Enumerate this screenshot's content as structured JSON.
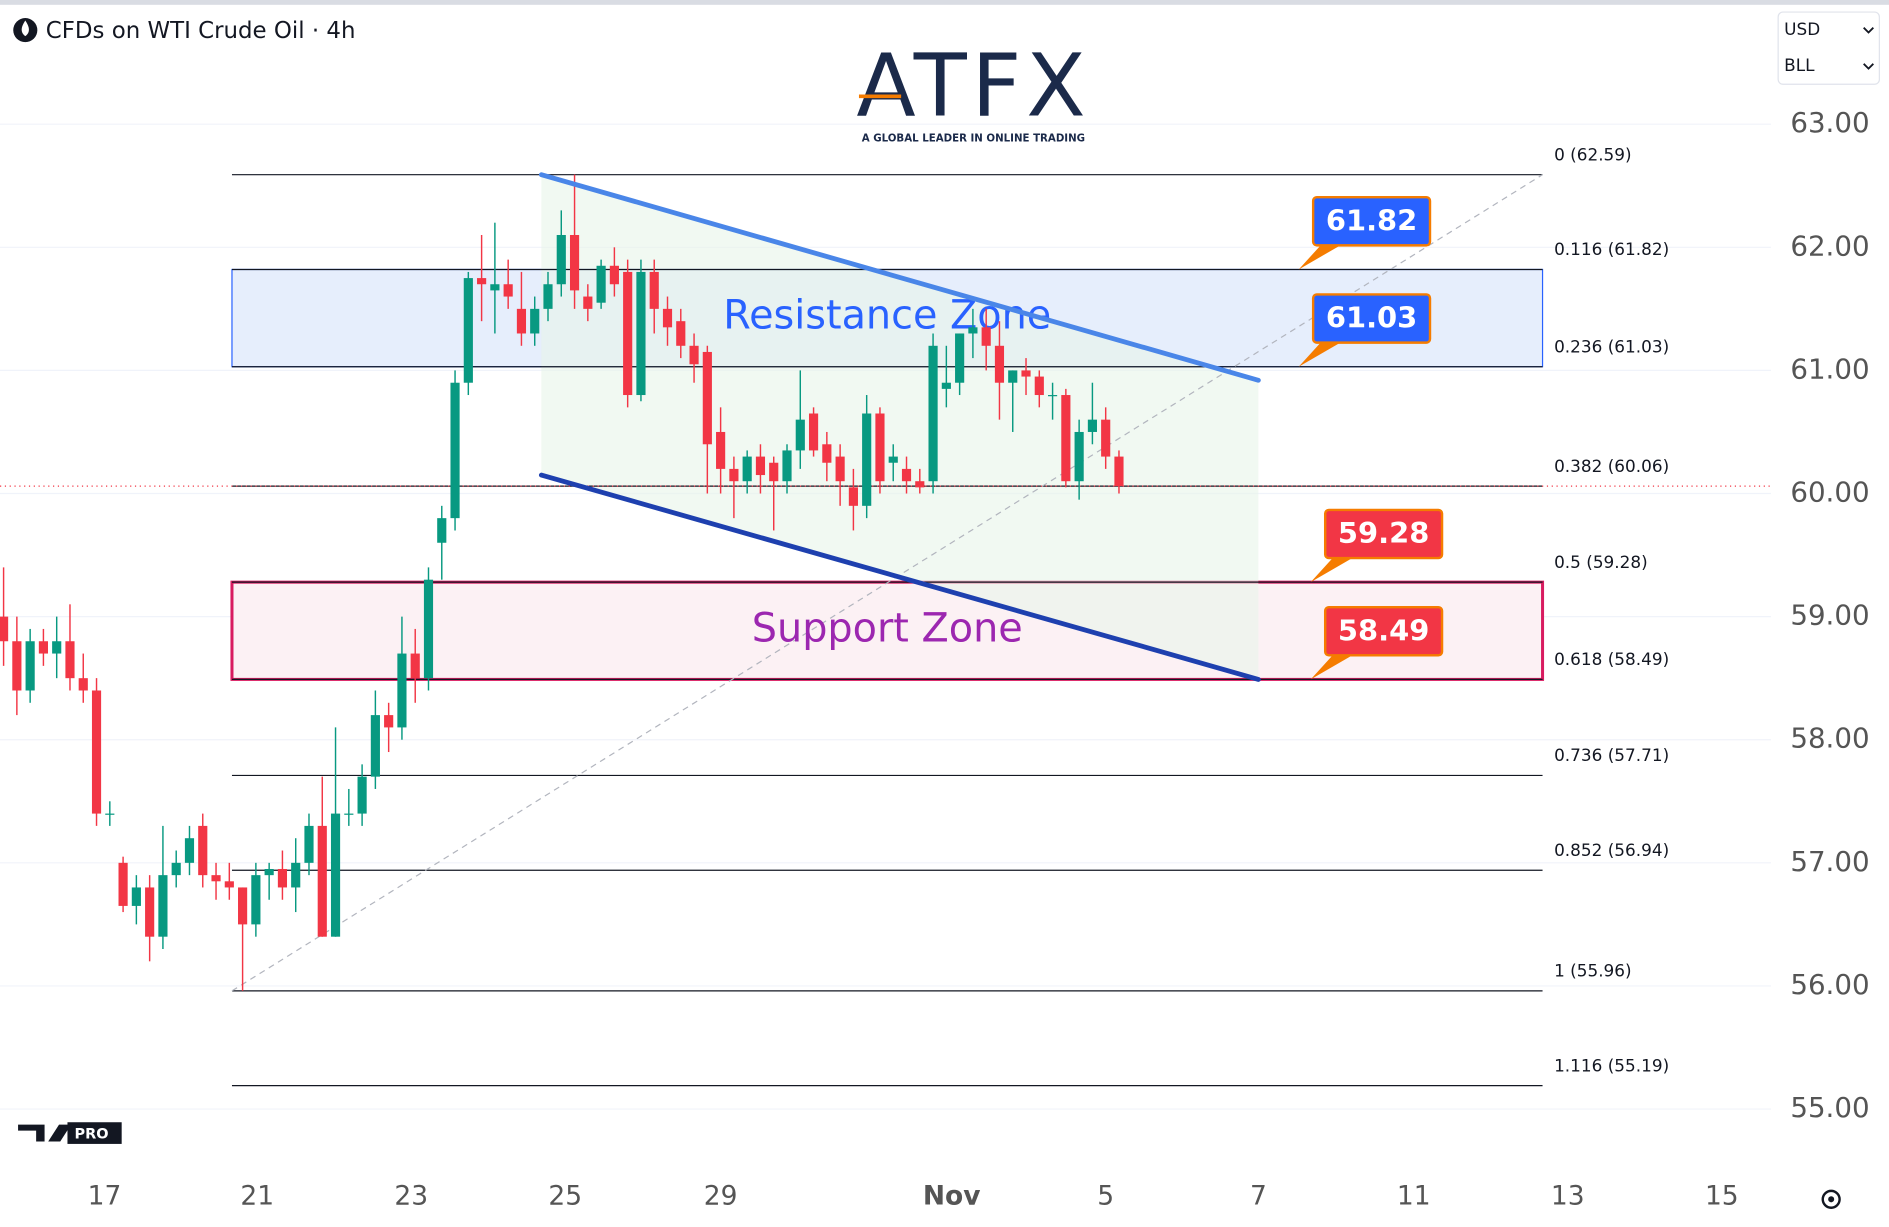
{
  "header": {
    "title": "CFDs on WTI Crude Oil · 4h",
    "logo": "ATFX",
    "tagline": "A GLOBAL LEADER IN ONLINE TRADING",
    "currency": "USD",
    "unit": "BLL",
    "badge": "PRO"
  },
  "chart_data": {
    "type": "candlestick",
    "x": [
      0,
      1,
      2,
      3,
      4,
      5,
      6,
      7,
      8,
      9,
      10,
      11,
      12,
      13,
      14,
      15,
      16,
      17,
      18,
      19,
      20,
      21,
      22,
      23,
      24,
      25,
      26,
      27,
      28,
      29,
      30,
      31,
      32,
      33,
      34,
      35,
      36,
      37,
      38,
      39,
      40,
      41,
      42,
      43,
      44,
      45,
      46,
      47,
      48,
      49,
      50,
      51,
      52,
      53,
      54,
      55,
      56,
      57,
      58,
      59,
      60,
      61,
      62,
      63,
      64,
      65,
      66,
      67,
      68,
      69,
      70,
      71,
      72,
      73,
      74,
      75,
      76,
      77,
      78,
      79,
      80,
      81,
      82,
      83,
      84
    ],
    "open": [
      59.0,
      58.8,
      58.4,
      58.8,
      58.7,
      58.8,
      58.5,
      58.4,
      57.4,
      57.0,
      56.65,
      56.8,
      56.4,
      56.9,
      57.0,
      57.3,
      56.9,
      56.85,
      56.8,
      56.5,
      56.9,
      56.95,
      56.8,
      57.0,
      57.3,
      56.4,
      57.4,
      57.4,
      57.7,
      58.2,
      58.1,
      58.7,
      58.5,
      59.6,
      59.8,
      60.9,
      61.75,
      61.65,
      61.7,
      61.5,
      61.3,
      61.5,
      61.7,
      62.1,
      61.6,
      61.55,
      61.85,
      61.8,
      60.8,
      61.8,
      61.5,
      61.4,
      61.2,
      61.15,
      60.5,
      60.2,
      60.1,
      60.3,
      60.25,
      60.1,
      60.35,
      60.65,
      60.4,
      60.3,
      60.05,
      59.9,
      60.65,
      60.25,
      60.2,
      60.1,
      60.1,
      60.85,
      60.9,
      61.3,
      61.35,
      61.2,
      60.9,
      61.0,
      60.95,
      60.8,
      60.8,
      60.1,
      60.5,
      60.6,
      60.3
    ],
    "high": [
      59.4,
      59.0,
      58.9,
      58.9,
      59.0,
      59.1,
      58.7,
      58.5,
      57.5,
      57.05,
      56.9,
      56.9,
      57.3,
      57.1,
      57.3,
      57.4,
      57.0,
      57.0,
      56.8,
      57.0,
      57.0,
      57.1,
      57.2,
      57.4,
      57.7,
      58.1,
      57.6,
      57.8,
      58.4,
      58.3,
      59.0,
      58.9,
      59.4,
      59.9,
      61.0,
      61.8,
      62.1,
      62.2,
      61.9,
      61.8,
      61.6,
      61.8,
      62.3,
      62.59,
      61.7,
      61.9,
      62.0,
      61.9,
      61.9,
      61.9,
      61.6,
      61.5,
      61.3,
      61.2,
      60.7,
      60.3,
      60.35,
      60.4,
      60.3,
      60.4,
      61.0,
      60.7,
      60.5,
      60.4,
      60.2,
      60.8,
      60.7,
      60.4,
      60.3,
      60.2,
      61.3,
      61.2,
      61.3,
      61.5,
      61.5,
      61.4,
      61.0,
      61.1,
      61.0,
      60.9,
      60.85,
      60.6,
      60.9,
      60.7,
      60.35
    ],
    "low": [
      58.6,
      58.2,
      58.3,
      58.6,
      58.5,
      58.4,
      58.3,
      57.3,
      57.3,
      56.6,
      56.5,
      56.2,
      56.3,
      56.8,
      56.9,
      56.8,
      56.7,
      56.7,
      55.96,
      56.4,
      56.7,
      56.7,
      56.6,
      56.9,
      56.4,
      56.4,
      57.3,
      57.3,
      57.6,
      57.9,
      58.0,
      58.3,
      58.4,
      59.3,
      59.7,
      60.8,
      61.4,
      61.3,
      61.5,
      61.2,
      61.2,
      61.4,
      61.6,
      61.5,
      61.4,
      61.5,
      61.6,
      60.7,
      60.75,
      61.3,
      61.2,
      61.1,
      60.9,
      60.0,
      60.0,
      59.8,
      60.0,
      60.0,
      59.7,
      60.0,
      60.2,
      60.3,
      60.1,
      59.9,
      59.7,
      59.8,
      60.0,
      60.1,
      60.0,
      60.0,
      60.0,
      60.7,
      60.8,
      61.1,
      61.0,
      60.6,
      60.5,
      60.8,
      60.7,
      60.6,
      60.05,
      59.95,
      60.4,
      60.2,
      60.0
    ],
    "close": [
      58.8,
      58.4,
      58.8,
      58.7,
      58.8,
      58.5,
      58.4,
      57.4,
      57.4,
      56.65,
      56.8,
      56.4,
      56.9,
      57.0,
      57.2,
      56.9,
      56.85,
      56.8,
      56.5,
      56.9,
      56.95,
      56.8,
      57.0,
      57.3,
      56.4,
      57.4,
      57.4,
      57.7,
      58.2,
      58.1,
      58.7,
      58.5,
      59.3,
      59.8,
      60.9,
      61.75,
      61.7,
      61.7,
      61.6,
      61.3,
      61.5,
      61.7,
      62.1,
      61.65,
      61.5,
      61.85,
      61.7,
      60.8,
      61.8,
      61.5,
      61.35,
      61.2,
      61.05,
      60.4,
      60.2,
      60.1,
      60.3,
      60.15,
      60.1,
      60.35,
      60.6,
      60.35,
      60.25,
      60.1,
      59.9,
      60.65,
      60.1,
      60.3,
      60.1,
      60.05,
      61.2,
      60.9,
      61.3,
      61.35,
      61.2,
      60.9,
      61.0,
      60.95,
      60.8,
      60.8,
      60.1,
      60.5,
      60.6,
      60.3,
      60.06
    ],
    "up_color": "#089981",
    "down_color": "#f23645",
    "xlim": [
      -0.27,
      133.1
    ],
    "ylim": [
      54.57,
      63.96
    ],
    "xticks": [
      {
        "value": 7.6,
        "label": "17"
      },
      {
        "value": 19.1,
        "label": "21"
      },
      {
        "value": 30.7,
        "label": "23"
      },
      {
        "value": 42.3,
        "label": "25"
      },
      {
        "value": 54.0,
        "label": "29"
      },
      {
        "value": 71.4,
        "label": "Nov"
      },
      {
        "value": 83.0,
        "label": "5"
      },
      {
        "value": 94.5,
        "label": "7"
      },
      {
        "value": 106.2,
        "label": "11"
      },
      {
        "value": 117.8,
        "label": "13"
      },
      {
        "value": 129.4,
        "label": "15"
      }
    ],
    "yticks": [
      {
        "value": 55,
        "label": "55.00"
      },
      {
        "value": 56,
        "label": "56.00"
      },
      {
        "value": 57,
        "label": "57.00"
      },
      {
        "value": 58,
        "label": "58.00"
      },
      {
        "value": 59,
        "label": "59.00"
      },
      {
        "value": 60,
        "label": "60.00"
      },
      {
        "value": 61,
        "label": "61.00"
      },
      {
        "value": 62,
        "label": "62.00"
      },
      {
        "value": 63,
        "label": "63.00"
      }
    ],
    "grid": true,
    "fib_x": [
      17.2,
      115.9
    ],
    "fib_levels": [
      {
        "value": 62.59,
        "label": "0 (62.59)"
      },
      {
        "value": 61.82,
        "label": "0.116 (61.82)"
      },
      {
        "value": 61.03,
        "label": "0.236 (61.03)"
      },
      {
        "value": 60.06,
        "label": "0.382 (60.06)"
      },
      {
        "value": 59.28,
        "label": "0.5 (59.28)"
      },
      {
        "value": 58.49,
        "label": "0.618 (58.49)"
      },
      {
        "value": 57.71,
        "label": "0.736 (57.71)"
      },
      {
        "value": 56.94,
        "label": "0.852 (56.94)"
      },
      {
        "value": 55.96,
        "label": "1 (55.96)"
      },
      {
        "value": 55.19,
        "label": "1.116 (55.19)"
      }
    ],
    "zones": [
      {
        "label": "Resistance Zone",
        "range": [
          61.03,
          61.82
        ],
        "color": "#2962ff",
        "fill": "#e6eefc"
      },
      {
        "label": "Support Zone",
        "range": [
          58.49,
          59.28
        ],
        "color": "#d81b60",
        "text_color": "#9c27b0",
        "fill": "#fcf1f4"
      }
    ],
    "channel": [
      {
        "x": [
          40.5,
          94.5
        ],
        "y": [
          62.59,
          60.92
        ],
        "color": "#4a86e8"
      },
      {
        "x": [
          40.5,
          94.5
        ],
        "y": [
          60.15,
          58.49
        ],
        "color": "#1e40af"
      }
    ],
    "channel_fill": "#e8f5e9",
    "callouts": [
      {
        "value": 61.82,
        "color": "#2962ff"
      },
      {
        "value": 61.03,
        "color": "#2962ff"
      },
      {
        "value": 59.28,
        "color": "#f23645"
      },
      {
        "value": 58.49,
        "color": "#f23645"
      }
    ],
    "callout_border": "#f57c00"
  }
}
